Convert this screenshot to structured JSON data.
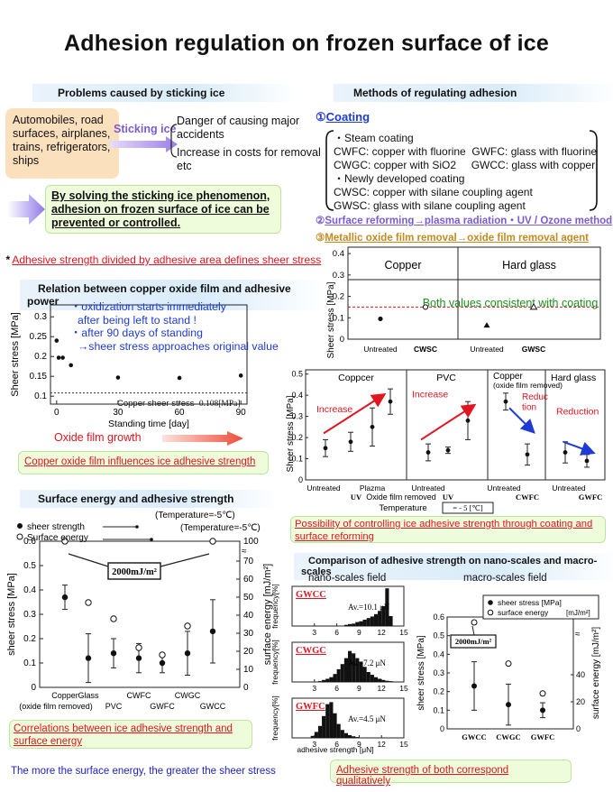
{
  "title": "Adhesion regulation on frozen surface of ice",
  "problems": {
    "heading": "Problems caused by sticking ice",
    "sources": "Automobiles, road surfaces, airplanes, trains, refrigerators, ships",
    "arrow_label": "Sticking ice",
    "effect1": "Danger of causing major accidents",
    "effect2": "Increase in costs for removal etc",
    "solution": "By solving the sticking ice phenomenon, adhesion on frozen surface of ice can be prevented or controlled."
  },
  "methods": {
    "heading": "Methods of regulating adhesion",
    "coating_num": "①",
    "coating_label": "Coating",
    "steam_title": "・Steam coating",
    "cwfc": "CWFC: copper with fluorine",
    "gwfc": "GWFC: glass with fluorine",
    "cwgc": "CWGC: copper with SiO2",
    "gwcc": "GWCC: glass with copper",
    "new_title": "・Newly developed coating",
    "cwsc": "CWSC: copper with silane coupling agent",
    "gwsc": "GWSC: glass with silane coupling agent",
    "m2_num": "②",
    "m2_text": "Surface reforming→plasma radiation・UV / Ozone method",
    "m3_num": "③",
    "m3_text": "Metallic oxide film removal→oxide film removal agent"
  },
  "note": {
    "star": "*",
    "text": "Adhesive strength divided by adhesive area defines sheer stress"
  },
  "oxide": {
    "heading": "Relation between copper oxide film and adhesive power",
    "ann1": "・oxidization starts immediately",
    "ann2": "after being left to stand !",
    "ann3": "・after 90 days of standing",
    "ann4": "→sheer stress approaches original value",
    "baseline_label": "Copper sheer stress",
    "baseline_value": "0.108[MPa]",
    "growth": "Oxide film growth",
    "conclusion": "Copper oxide film influences ice adhesive strength",
    "chart_data": {
      "type": "scatter",
      "xlabel": "Standing time [day]",
      "ylabel": "Sheer stress [MPa]",
      "xticks": [
        "0",
        "30",
        "60",
        "90"
      ],
      "yticks": [
        "0.1",
        "0.15",
        "0.2",
        "0.25",
        "0.3"
      ],
      "xlim": [
        -3,
        93
      ],
      "ylim": [
        0.08,
        0.33
      ],
      "x": [
        0,
        1,
        3,
        7,
        30,
        60,
        90
      ],
      "y": [
        0.24,
        0.197,
        0.197,
        0.178,
        0.147,
        0.146,
        0.152
      ],
      "baseline": 0.108
    }
  },
  "coat_chart": {
    "panels": [
      "Copper",
      "Hard glass"
    ],
    "consistent": "Both values consistent with coating",
    "chart_data": {
      "type": "scatter",
      "ylabel": "Sheer stress [MPa]",
      "yticks": [
        "0",
        "0.1",
        "0.2",
        "0.3",
        "0.4"
      ],
      "ylim": [
        0,
        0.43
      ],
      "categories": [
        "Untreated",
        "CWSC",
        "Untreated",
        "GWSC"
      ],
      "values": [
        0.095,
        0.15,
        0.065,
        0.15
      ],
      "reference_line": 0.15
    }
  },
  "reform_chart": {
    "panels": [
      "Coppcer",
      "PVC",
      "Copper",
      "Hard glass"
    ],
    "panel_sub": "(oxide film removed)",
    "labels": [
      "Increase",
      "Increase",
      "Reduc tion",
      "Reduction"
    ],
    "xcats": [
      "Untreated",
      "UV",
      "Plazma",
      "Untreated",
      "UV",
      "Untreated",
      "CWFC",
      "Untreated",
      "GWFC"
    ],
    "oxide_removed": "Oxide film removed",
    "temperature_label": "Temperature",
    "temperature_value": "= - 5 [℃]",
    "conclusion": "Possibility of controlling ice adhesive strength through coating and surface reforming",
    "chart_data": {
      "type": "scatter",
      "ylabel": "Sheer stress [MPa]",
      "yticks": [
        "0",
        "0.1",
        "0.2",
        "0.3",
        "0.4",
        "0.5"
      ],
      "ylim": [
        0,
        0.52
      ],
      "copper": [
        0.15,
        0.18,
        0.25,
        0.37
      ],
      "pvc": [
        0.13,
        0.14,
        0.28
      ],
      "copper_oxide_removed": [
        0.37,
        0.12
      ],
      "hard_glass": [
        0.13,
        0.09
      ]
    }
  },
  "surface": {
    "heading": "Surface energy and adhesive strength",
    "legend_sheer": "sheer strength",
    "legend_energy": "Surface energy",
    "temp1": "(Temperature=-5℃)",
    "temp2": "(Temperature=-5℃)",
    "callout": "2000mJ/m²",
    "cats_top": [
      "Copper",
      "Glass",
      "",
      "CWFC",
      "",
      "CWGC",
      ""
    ],
    "cats_bot": [
      "(oxide film removed)",
      "",
      "PVC",
      "",
      "GWFC",
      "",
      "GWCC"
    ],
    "conclusion": "Correlations between ice adhesive strength and surface energy",
    "footer": "The more the surface energy, the greater the sheer stress",
    "chart_data": {
      "type": "scatter",
      "ylabel": "sheer stress [MPa]",
      "y2label": "surface energy [mJ/m²]",
      "yticks": [
        "0",
        "0.1",
        "0.2",
        "0.3",
        "0.4",
        "0.5",
        "0.6"
      ],
      "y2ticks": [
        "0",
        "10",
        "20",
        "30",
        "40",
        "50",
        "60",
        "70",
        "100"
      ],
      "sheer_stress": [
        0.37,
        0.12,
        0.14,
        0.12,
        0.1,
        0.14,
        0.23
      ],
      "surface_energy": [
        100,
        47,
        38,
        22,
        18,
        34,
        100
      ]
    }
  },
  "nano_macro": {
    "heading": "Comparison of adhesive strength on nano-scales and macro-scales",
    "nano_title": "nano-scales field",
    "macro_title": "macro-scales field",
    "hist": [
      {
        "name": "GWCC",
        "avg": "Av.=10.1 μN"
      },
      {
        "name": "CWGC",
        "avg": "Av.=7.2 μN"
      },
      {
        "name": "GWFC",
        "avg": "Av.=4.5 μN"
      }
    ],
    "hist_ylabel": "frequency[%]",
    "hist_xlabel": "adhesive strength [μN]",
    "hist_xticks": [
      "3",
      "6",
      "9",
      "12",
      "15"
    ],
    "macro_legend1": "sheer stress [MPa]",
    "macro_legend2": "surface energy",
    "macro_legend2_unit": "[mJ/m²]",
    "macro_callout": "2000mJ/m²",
    "macro_ylabel": "sheer stress [MPa]",
    "macro_y2label": "surface energy [mJ/m²]",
    "macro_yticks": [
      "0",
      "0.1",
      "0.2",
      "0.3",
      "0.4",
      "0.5",
      "0.6"
    ],
    "macro_y2ticks": [
      "0",
      "20",
      "40"
    ],
    "macro_cats": [
      "GWCC",
      "CWGC",
      "GWFC"
    ],
    "conclusion": "Adhesive strength of both correspond qualitatively"
  }
}
